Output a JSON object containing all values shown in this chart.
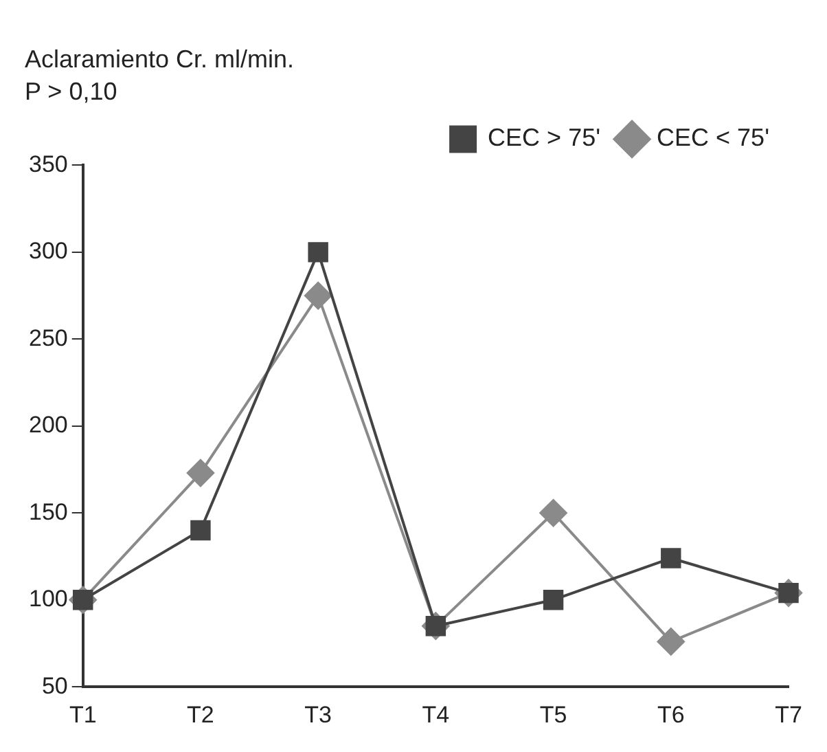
{
  "chart_data": {
    "type": "line",
    "title": "Aclaramiento Cr. ml/min.",
    "subtitle": "P > 0,10",
    "categories": [
      "T1",
      "T2",
      "T3",
      "T4",
      "T5",
      "T6",
      "T7"
    ],
    "series": [
      {
        "name": "CEC > 75'",
        "color": "#444444",
        "marker": "square",
        "values": [
          100,
          140,
          300,
          85,
          100,
          124,
          104
        ]
      },
      {
        "name": "CEC < 75'",
        "color": "#8a8a8a",
        "marker": "diamond",
        "values": [
          100,
          173,
          275,
          85,
          150,
          76,
          104
        ]
      }
    ],
    "ylim": [
      50,
      350
    ],
    "yticks": [
      50,
      100,
      150,
      200,
      250,
      300,
      350
    ],
    "grid": false,
    "legend": "top right",
    "line_style": "solid"
  }
}
